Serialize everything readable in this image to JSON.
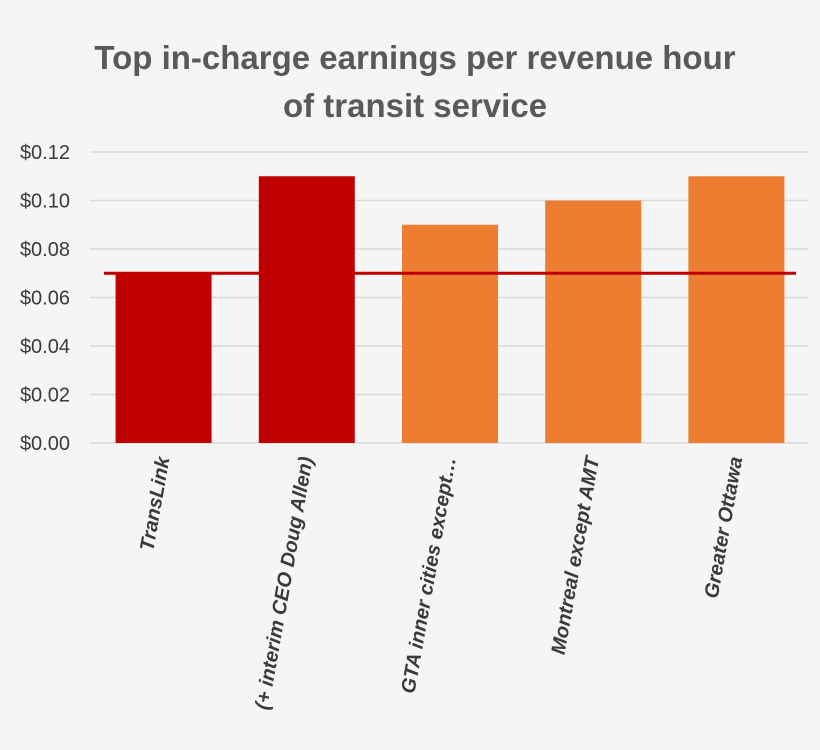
{
  "chart_data": {
    "type": "bar",
    "title_lines": [
      "Top in-charge earnings per revenue hour",
      "of transit service"
    ],
    "categories": [
      "TransLink",
      "(+ interim CEO Doug Allen)",
      "GTA inner cities except…",
      "Montreal except AMT",
      "Greater Ottawa"
    ],
    "values": [
      0.07,
      0.11,
      0.09,
      0.1,
      0.11
    ],
    "bar_colors": [
      "#c00000",
      "#c00000",
      "#ed7d31",
      "#ed7d31",
      "#ed7d31"
    ],
    "reference_line": {
      "value": 0.07,
      "color": "#c00000"
    },
    "ylim": [
      0,
      0.12
    ],
    "y_ticks": [
      {
        "value": 0.0,
        "label": "$0.00"
      },
      {
        "value": 0.02,
        "label": "$0.02"
      },
      {
        "value": 0.04,
        "label": "$0.04"
      },
      {
        "value": 0.06,
        "label": "$0.06"
      },
      {
        "value": 0.08,
        "label": "$0.08"
      },
      {
        "value": 0.1,
        "label": "$0.10"
      },
      {
        "value": 0.12,
        "label": "$0.12"
      }
    ],
    "xlabel": "",
    "ylabel": "",
    "grid": true,
    "legend": "none",
    "gridline_color": "#d9d9d9"
  }
}
